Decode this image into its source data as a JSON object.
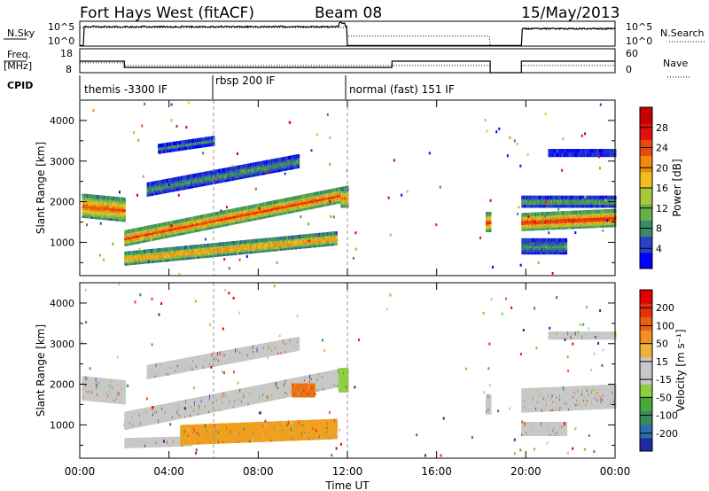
{
  "header": {
    "title": "Fort Hays West (fitACF)",
    "beam": "Beam 08",
    "date": "15/May/2013"
  },
  "top_panels": {
    "nsky_label": "N.Sky",
    "nsky_ticks": [
      "10^5",
      "10^0"
    ],
    "nsearch_ticks": [
      "10^5",
      "10^0"
    ],
    "nsearch_label": "N.Search",
    "freq_label_1": "Freq.",
    "freq_label_2": "[MHz]",
    "freq_ticks": [
      "18",
      "8"
    ],
    "nave_ticks": [
      "60",
      "0"
    ],
    "nave_label": "Nave",
    "cpid_label": "CPID",
    "cpid_modes": [
      "themis -3300 IF",
      "rbsp 200 IF",
      "normal (fast) 151 IF"
    ]
  },
  "chart_data": [
    {
      "type": "heatmap",
      "title": "",
      "ylabel": "Slant Range [km]",
      "xlabel": "",
      "x_ticks": [
        "00:00",
        "04:00",
        "08:00",
        "12:00",
        "16:00",
        "20:00",
        "00:00"
      ],
      "xlim_hours": [
        0,
        24
      ],
      "ylim": [
        180,
        4500
      ],
      "y_ticks": [
        1000,
        2000,
        3000,
        4000
      ],
      "colorbar": {
        "label": "Power [dB]",
        "ticks": [
          "4",
          "8",
          "12",
          "16",
          "20",
          "24",
          "28"
        ],
        "colors": [
          "#0000ff",
          "#2a40c8",
          "#3a8a6a",
          "#66b04a",
          "#a8c83a",
          "#f0c020",
          "#f08a10",
          "#e84a10",
          "#e01010",
          "#c80000"
        ]
      },
      "echo_bands": [
        {
          "start_h": 0.1,
          "end_h": 2.0,
          "range_center_km": [
            1900,
            1800
          ],
          "width_km": 500,
          "level": 0.75
        },
        {
          "start_h": 2.0,
          "end_h": 12.0,
          "range_center_km": [
            1100,
            2200
          ],
          "width_km": 300,
          "level": 0.8
        },
        {
          "start_h": 2.0,
          "end_h": 11.5,
          "range_center_km": [
            600,
            1100
          ],
          "width_km": 250,
          "level": 0.7
        },
        {
          "start_h": 3.0,
          "end_h": 9.8,
          "range_center_km": [
            2300,
            3000
          ],
          "width_km": 250,
          "level": 0.3
        },
        {
          "start_h": 3.5,
          "end_h": 6.0,
          "range_center_km": [
            3300,
            3500
          ],
          "width_km": 150,
          "level": 0.25
        },
        {
          "start_h": 11.7,
          "end_h": 12.0,
          "range_center_km": [
            2100,
            2100
          ],
          "width_km": 400,
          "level": 0.7
        },
        {
          "start_h": 18.2,
          "end_h": 18.4,
          "range_center_km": [
            1500,
            1500
          ],
          "width_km": 400,
          "level": 0.8
        },
        {
          "start_h": 19.8,
          "end_h": 24.0,
          "range_center_km": [
            1500,
            1600
          ],
          "width_km": 350,
          "level": 0.85
        },
        {
          "start_h": 19.8,
          "end_h": 21.8,
          "range_center_km": [
            900,
            900
          ],
          "width_km": 300,
          "level": 0.3
        },
        {
          "start_h": 19.8,
          "end_h": 24.0,
          "range_center_km": [
            2000,
            2000
          ],
          "width_km": 200,
          "level": 0.35
        },
        {
          "start_h": 21.0,
          "end_h": 24.0,
          "range_center_km": [
            3200,
            3200
          ],
          "width_km": 100,
          "level": 0.3
        }
      ]
    },
    {
      "type": "heatmap",
      "title": "",
      "ylabel": "Slant Range [km]",
      "xlabel": "Time UT",
      "x_ticks": [
        "00:00",
        "04:00",
        "08:00",
        "12:00",
        "16:00",
        "20:00",
        "00:00"
      ],
      "xlim_hours": [
        0,
        24
      ],
      "ylim": [
        180,
        4500
      ],
      "y_ticks": [
        1000,
        2000,
        3000,
        4000
      ],
      "colorbar": {
        "label": "Velocity [m s⁻¹]",
        "ticks": [
          "200",
          "100",
          "50",
          "15",
          "-15",
          "-50",
          "-100",
          "-200"
        ],
        "colors": [
          "#1e2aa0",
          "#2b6fb0",
          "#3a8a5a",
          "#4aa83a",
          "#8cd040",
          "#c8c8c8",
          "#c8c8c8",
          "#f0b040",
          "#f09020",
          "#e86010",
          "#e83010",
          "#e00000"
        ]
      },
      "echo_bands": [
        {
          "start_h": 0.1,
          "end_h": 2.0,
          "range_center_km": [
            1900,
            1800
          ],
          "width_km": 500,
          "color": "#c8c8c8"
        },
        {
          "start_h": 2.0,
          "end_h": 12.0,
          "range_center_km": [
            1100,
            2200
          ],
          "width_km": 350,
          "color": "#c8c8c8"
        },
        {
          "start_h": 3.0,
          "end_h": 9.8,
          "range_center_km": [
            2300,
            3000
          ],
          "width_km": 250,
          "color": "#c8c8c8"
        },
        {
          "start_h": 2.0,
          "end_h": 5.0,
          "range_center_km": [
            550,
            600
          ],
          "width_km": 150,
          "color": "#c8c8c8"
        },
        {
          "start_h": 4.5,
          "end_h": 11.5,
          "range_center_km": [
            750,
            900
          ],
          "width_km": 400,
          "color": "#f0a020"
        },
        {
          "start_h": 9.5,
          "end_h": 10.5,
          "range_center_km": [
            1850,
            1850
          ],
          "width_km": 250,
          "color": "#f07010"
        },
        {
          "start_h": 11.6,
          "end_h": 12.0,
          "range_center_km": [
            2100,
            2100
          ],
          "width_km": 500,
          "color": "#8cd040"
        },
        {
          "start_h": 18.2,
          "end_h": 18.4,
          "range_center_km": [
            1500,
            1500
          ],
          "width_km": 400,
          "color": "#c8c8c8"
        },
        {
          "start_h": 19.8,
          "end_h": 24.0,
          "range_center_km": [
            1600,
            1700
          ],
          "width_km": 500,
          "color": "#c8c8c8"
        },
        {
          "start_h": 19.8,
          "end_h": 21.8,
          "range_center_km": [
            900,
            900
          ],
          "width_km": 250,
          "color": "#c8c8c8"
        },
        {
          "start_h": 21.0,
          "end_h": 24.0,
          "range_center_km": [
            3200,
            3200
          ],
          "width_km": 100,
          "color": "#c8c8c8"
        }
      ]
    }
  ]
}
